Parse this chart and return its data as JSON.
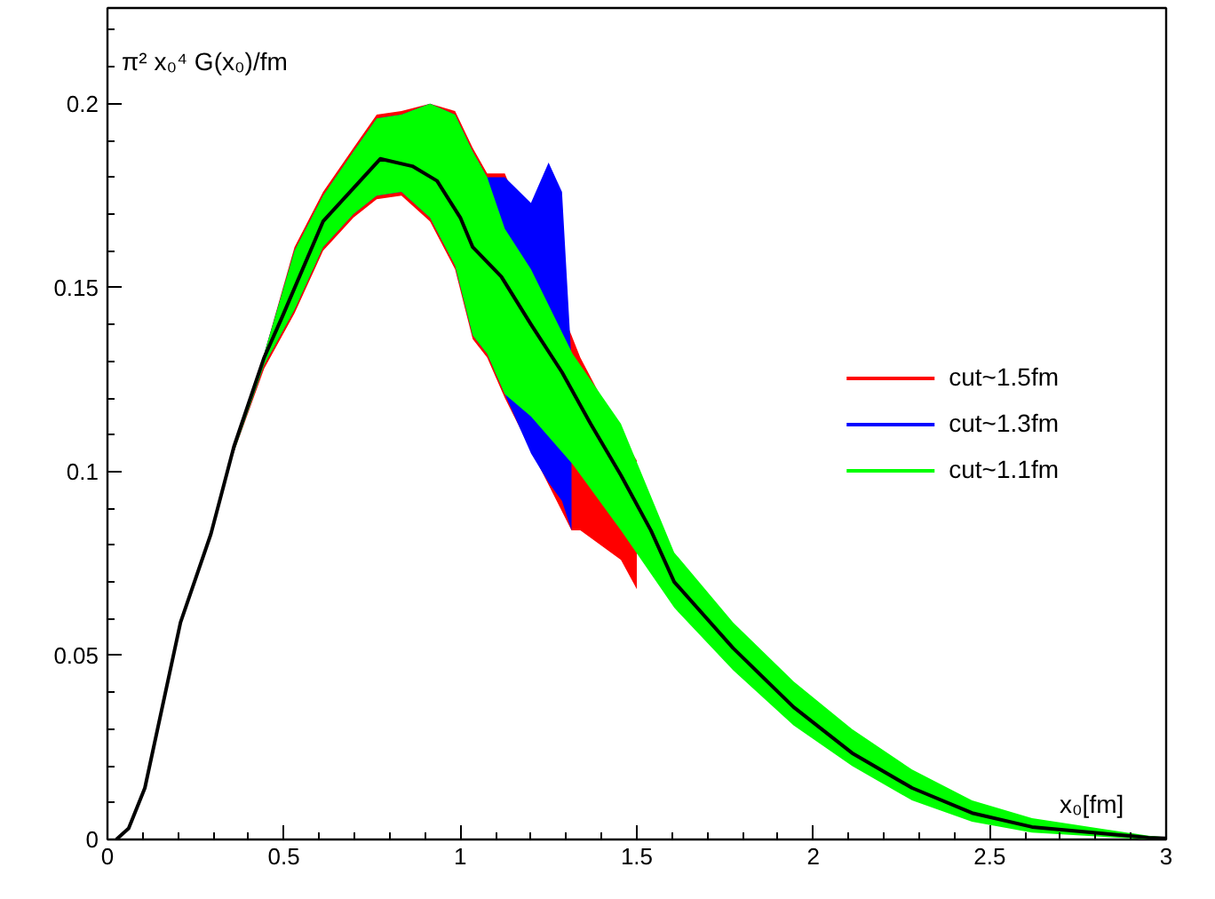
{
  "chart_data": {
    "type": "line",
    "ylabel": "π² x₀⁴ G(x₀)/fm",
    "xlabel": "x₀[fm]",
    "xlim": [
      0,
      3
    ],
    "ylim": [
      0,
      0.226
    ],
    "xticks": [
      0,
      0.5,
      1,
      1.5,
      2,
      2.5,
      3
    ],
    "yticks": [
      0,
      0.05,
      0.1,
      0.15,
      0.2
    ],
    "grid": false,
    "legend": "right",
    "marker": "none",
    "line_style": "solid",
    "series": [
      {
        "name": "cut~1.5fm",
        "color": "#ff0000",
        "x": [
          0.35,
          0.444,
          0.53,
          0.611,
          0.697,
          0.763,
          0.833,
          0.914,
          0.985,
          1.035,
          1.076,
          1.126,
          1.315,
          1.34,
          1.455,
          1.5
        ],
        "values": [
          null,
          null,
          null,
          null,
          null,
          null,
          null,
          null,
          null,
          null,
          null,
          null,
          null,
          null,
          null,
          null
        ],
        "upper": [
          0.105,
          0.132,
          0.161,
          0.176,
          0.188,
          0.197,
          0.198,
          0.2,
          0.198,
          0.188,
          0.181,
          0.181,
          0.137,
          0.131,
          0.11,
          0.103
        ],
        "lower": [
          0.103,
          0.128,
          0.143,
          0.16,
          0.169,
          0.174,
          0.175,
          0.168,
          0.155,
          0.136,
          0.131,
          0.12,
          0.084,
          0.084,
          0.076,
          0.068
        ]
      },
      {
        "name": "cut~1.3fm",
        "color": "#0000ff",
        "x": [
          0.35,
          0.444,
          0.53,
          0.611,
          0.697,
          0.763,
          0.833,
          0.914,
          0.985,
          1.035,
          1.076,
          1.126,
          1.2,
          1.25,
          1.288,
          1.315
        ],
        "values": [
          null,
          null,
          null,
          null,
          null,
          null,
          null,
          null,
          null,
          null,
          null,
          null,
          null,
          null,
          null,
          null
        ],
        "upper": [
          0.105,
          0.132,
          0.16,
          0.175,
          0.187,
          0.196,
          0.197,
          0.2,
          0.197,
          0.187,
          0.18,
          0.18,
          0.173,
          0.184,
          0.176,
          0.13
        ],
        "lower": [
          0.103,
          0.129,
          0.144,
          0.161,
          0.17,
          0.175,
          0.176,
          0.169,
          0.156,
          0.137,
          0.132,
          0.121,
          0.105,
          0.097,
          0.092,
          0.084
        ]
      },
      {
        "name": "cut~1.1fm",
        "color": "#00ff00",
        "x": [
          0.35,
          0.444,
          0.53,
          0.611,
          0.697,
          0.763,
          0.833,
          0.914,
          0.985,
          1.035,
          1.076,
          1.126,
          1.2,
          1.318,
          1.455,
          1.606,
          1.773,
          1.944,
          2.11,
          2.28,
          2.45,
          2.62,
          2.95,
          3
        ],
        "values": [
          null,
          null,
          null,
          null,
          null,
          null,
          null,
          null,
          null,
          null,
          null,
          null,
          null,
          null,
          null,
          null,
          null,
          null,
          null,
          null,
          null,
          null,
          null,
          null
        ],
        "upper": [
          0.105,
          0.132,
          0.16,
          0.175,
          0.187,
          0.196,
          0.197,
          0.2,
          0.197,
          0.187,
          0.18,
          0.166,
          0.155,
          0.132,
          0.113,
          0.078,
          0.059,
          0.043,
          0.03,
          0.019,
          0.0106,
          0.0058,
          0.001,
          0.0006
        ],
        "lower": [
          0.103,
          0.129,
          0.144,
          0.161,
          0.17,
          0.175,
          0.176,
          0.169,
          0.156,
          0.137,
          0.132,
          0.121,
          0.115,
          0.102,
          0.084,
          0.063,
          0.046,
          0.031,
          0.02,
          0.0106,
          0.0048,
          0.0019,
          0,
          0
        ]
      },
      {
        "color": "#000000",
        "x": [
          0.025,
          0.06,
          0.106,
          0.207,
          0.293,
          0.359,
          0.444,
          0.495,
          0.611,
          0.697,
          0.773,
          0.864,
          0.934,
          1.0,
          1.035,
          1.116,
          1.2,
          1.288,
          1.369,
          1.455,
          1.54,
          1.606,
          1.773,
          1.944,
          2.11,
          2.28,
          2.45,
          2.62,
          2.95,
          3
        ],
        "values": [
          0,
          0.003,
          0.014,
          0.059,
          0.083,
          0.107,
          0.131,
          0.142,
          0.168,
          0.177,
          0.185,
          0.183,
          0.179,
          0.169,
          0.161,
          0.153,
          0.14,
          0.127,
          0.113,
          0.099,
          0.084,
          0.07,
          0.052,
          0.036,
          0.0235,
          0.014,
          0.0072,
          0.0034,
          0.0005,
          0.0003
        ]
      }
    ]
  }
}
